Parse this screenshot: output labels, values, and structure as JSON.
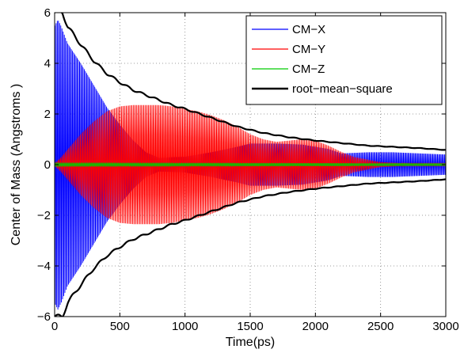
{
  "chart_data": {
    "type": "line",
    "title": "",
    "xlabel": "Time(ps)",
    "ylabel": "Center of Mass (Angstroms )",
    "xlim": [
      0,
      3000
    ],
    "ylim": [
      -6,
      6
    ],
    "xticks": [
      0,
      500,
      1000,
      1500,
      2000,
      2500,
      3000
    ],
    "xtick_labels": [
      "0",
      "500",
      "1000",
      "1500",
      "2000",
      "2500",
      "3000"
    ],
    "yticks": [
      -6,
      -4,
      -2,
      0,
      2,
      4,
      6
    ],
    "ytick_labels": [
      "−6",
      "−4",
      "−2",
      "0",
      "2",
      "4",
      "6"
    ],
    "grid": true,
    "legend_position": "top-right",
    "series": [
      {
        "name": "CM−X",
        "color": "#0000ff",
        "style": "oscillation-envelope",
        "x": [
          0,
          25,
          50,
          100,
          200,
          300,
          400,
          500,
          600,
          700,
          800,
          1000,
          1200,
          1400,
          1500,
          1700,
          1900,
          2100,
          2200,
          2400,
          2600,
          2800,
          3000
        ],
        "amplitude": [
          6.3,
          6.6,
          6.3,
          5.5,
          4.6,
          3.6,
          2.6,
          1.8,
          1.1,
          0.55,
          0.3,
          0.35,
          0.55,
          0.8,
          0.95,
          0.95,
          0.9,
          0.7,
          0.5,
          0.55,
          0.55,
          0.5,
          0.45
        ]
      },
      {
        "name": "CM−Y",
        "color": "#ff0000",
        "style": "oscillation-envelope",
        "x": [
          0,
          50,
          100,
          200,
          300,
          400,
          500,
          600,
          700,
          800,
          900,
          1000,
          1100,
          1200,
          1300,
          1400,
          1500,
          1600,
          1700,
          1800,
          1900,
          2000,
          2100,
          2200,
          2300,
          2500,
          2700,
          3000
        ],
        "amplitude": [
          0.05,
          0.3,
          0.6,
          1.2,
          1.7,
          2.1,
          2.3,
          2.35,
          2.35,
          2.35,
          2.3,
          2.2,
          2.1,
          1.95,
          1.75,
          1.5,
          1.2,
          1.0,
          0.9,
          0.95,
          1.0,
          0.95,
          0.75,
          0.5,
          0.3,
          0.1,
          0.05,
          0.05
        ]
      },
      {
        "name": "CM−Z",
        "color": "#00cc00",
        "style": "oscillation-envelope",
        "x": [
          0,
          3000
        ],
        "amplitude": [
          0.08,
          0.05
        ]
      },
      {
        "name": "root−mean−square",
        "color": "#000000",
        "style": "symmetric-envelope",
        "x": [
          0,
          60,
          100,
          200,
          300,
          400,
          500,
          600,
          700,
          800,
          900,
          1000,
          1200,
          1400,
          1600,
          1800,
          2000,
          2200,
          2400,
          2600,
          2800,
          3000
        ],
        "values": [
          6.0,
          6.0,
          5.45,
          4.75,
          4.1,
          3.6,
          3.25,
          2.95,
          2.75,
          2.55,
          2.35,
          2.2,
          1.85,
          1.5,
          1.25,
          1.08,
          0.95,
          0.85,
          0.75,
          0.7,
          0.65,
          0.58
        ]
      }
    ]
  }
}
